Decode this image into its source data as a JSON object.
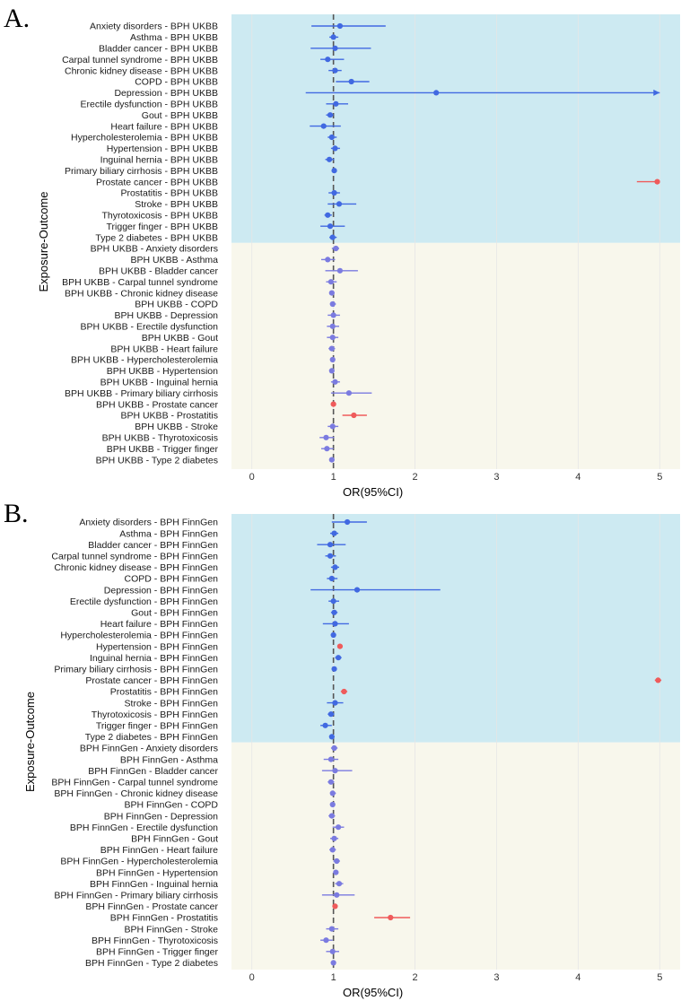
{
  "colors": {
    "band_top": "#cdeaf2",
    "band_bottom": "#f8f7ec",
    "nonsig": "#4169e1",
    "nonsig_rev": "#7b7be0",
    "sig": "#ef5b5b",
    "refline": "#555555",
    "grid": "#e6e6e6"
  },
  "chart_data": [
    {
      "panel": "A.",
      "type": "forest",
      "xlabel": "OR(95%CI)",
      "ylabel": "Exposure-Outcome",
      "xlim": [
        -0.25,
        5.25
      ],
      "xticks": [
        "0",
        "1",
        "2",
        "3",
        "4",
        "5"
      ],
      "reference": 1,
      "group_split": 20,
      "rows": [
        {
          "label": "Anxiety disorders - BPH UKBB",
          "or": 1.08,
          "lo": 0.73,
          "hi": 1.64,
          "sig": false
        },
        {
          "label": "Asthma - BPH UKBB",
          "or": 1.0,
          "lo": 0.95,
          "hi": 1.06,
          "sig": false
        },
        {
          "label": "Bladder cancer - BPH UKBB",
          "or": 1.02,
          "lo": 0.72,
          "hi": 1.46,
          "sig": false
        },
        {
          "label": "Carpal tunnel syndrome - BPH UKBB",
          "or": 0.93,
          "lo": 0.84,
          "hi": 1.13,
          "sig": false
        },
        {
          "label": "Chronic kidney disease - BPH UKBB",
          "or": 1.02,
          "lo": 0.94,
          "hi": 1.1,
          "sig": false
        },
        {
          "label": "COPD - BPH UKBB",
          "or": 1.22,
          "lo": 1.03,
          "hi": 1.44,
          "sig": false
        },
        {
          "label": "Depression - BPH UKBB",
          "or": 2.26,
          "lo": 0.66,
          "hi": 5.0,
          "sig": false,
          "arrow": true
        },
        {
          "label": "Erectile dysfunction - BPH UKBB",
          "or": 1.03,
          "lo": 0.91,
          "hi": 1.18,
          "sig": false
        },
        {
          "label": "Gout - BPH UKBB",
          "or": 0.96,
          "lo": 0.91,
          "hi": 1.0,
          "sig": false
        },
        {
          "label": "Heart failure - BPH UKBB",
          "or": 0.88,
          "lo": 0.71,
          "hi": 1.09,
          "sig": false
        },
        {
          "label": "Hypercholesterolemia - BPH UKBB",
          "or": 0.98,
          "lo": 0.93,
          "hi": 1.04,
          "sig": false
        },
        {
          "label": "Hypertension - BPH UKBB",
          "or": 1.02,
          "lo": 0.97,
          "hi": 1.08,
          "sig": false
        },
        {
          "label": "Inguinal hernia - BPH UKBB",
          "or": 0.95,
          "lo": 0.9,
          "hi": 1.01,
          "sig": false
        },
        {
          "label": "Primary biliary cirrhosis - BPH UKBB",
          "or": 1.01,
          "lo": 0.99,
          "hi": 1.03,
          "sig": false
        },
        {
          "label": "Prostate cancer - BPH UKBB",
          "or": 4.97,
          "lo": 4.72,
          "hi": 5.0,
          "sig": true
        },
        {
          "label": "Prostatitis - BPH UKBB",
          "or": 1.01,
          "lo": 0.94,
          "hi": 1.08,
          "sig": false
        },
        {
          "label": "Stroke - BPH UKBB",
          "or": 1.07,
          "lo": 0.93,
          "hi": 1.28,
          "sig": false
        },
        {
          "label": "Thyrotoxicosis - BPH UKBB",
          "or": 0.93,
          "lo": 0.89,
          "hi": 0.98,
          "sig": false
        },
        {
          "label": "Trigger finger - BPH UKBB",
          "or": 0.96,
          "lo": 0.84,
          "hi": 1.14,
          "sig": false
        },
        {
          "label": "Type 2 diabetes - BPH UKBB",
          "or": 0.99,
          "lo": 0.95,
          "hi": 1.04,
          "sig": false
        },
        {
          "label": "BPH UKBB - Anxiety disorders",
          "or": 1.03,
          "lo": 0.98,
          "hi": 1.07,
          "sig": false
        },
        {
          "label": "BPH UKBB - Asthma",
          "or": 0.93,
          "lo": 0.85,
          "hi": 1.02,
          "sig": false
        },
        {
          "label": "BPH UKBB - Bladder cancer",
          "or": 1.08,
          "lo": 0.9,
          "hi": 1.3,
          "sig": false
        },
        {
          "label": "BPH UKBB - Carpal tunnel syndrome",
          "or": 0.97,
          "lo": 0.91,
          "hi": 1.04,
          "sig": false
        },
        {
          "label": "BPH UKBB - Chronic kidney disease",
          "or": 0.98,
          "lo": 0.95,
          "hi": 1.01,
          "sig": false
        },
        {
          "label": "BPH UKBB - COPD",
          "or": 0.99,
          "lo": 0.96,
          "hi": 1.03,
          "sig": false
        },
        {
          "label": "BPH UKBB - Depression",
          "or": 1.0,
          "lo": 0.93,
          "hi": 1.08,
          "sig": false
        },
        {
          "label": "BPH UKBB - Erectile dysfunction",
          "or": 0.99,
          "lo": 0.92,
          "hi": 1.07,
          "sig": false
        },
        {
          "label": "BPH UKBB - Gout",
          "or": 0.99,
          "lo": 0.92,
          "hi": 1.06,
          "sig": false
        },
        {
          "label": "BPH UKBB - Heart failure",
          "or": 0.98,
          "lo": 0.94,
          "hi": 1.02,
          "sig": false
        },
        {
          "label": "BPH UKBB - Hypercholesterolemia",
          "or": 0.99,
          "lo": 0.96,
          "hi": 1.02,
          "sig": false
        },
        {
          "label": "BPH UKBB - Hypertension",
          "or": 0.98,
          "lo": 0.95,
          "hi": 1.01,
          "sig": false
        },
        {
          "label": "BPH UKBB - Inguinal hernia",
          "or": 1.02,
          "lo": 0.97,
          "hi": 1.08,
          "sig": false
        },
        {
          "label": "BPH UKBB - Primary biliary cirrhosis",
          "or": 1.19,
          "lo": 0.97,
          "hi": 1.47,
          "sig": false
        },
        {
          "label": "BPH UKBB - Prostate cancer",
          "or": 1.0,
          "lo": 0.99,
          "hi": 1.01,
          "sig": true
        },
        {
          "label": "BPH UKBB - Prostatitis",
          "or": 1.25,
          "lo": 1.11,
          "hi": 1.41,
          "sig": true
        },
        {
          "label": "BPH UKBB - Stroke",
          "or": 0.99,
          "lo": 0.93,
          "hi": 1.06,
          "sig": false
        },
        {
          "label": "BPH UKBB - Thyrotoxicosis",
          "or": 0.91,
          "lo": 0.83,
          "hi": 1.01,
          "sig": false
        },
        {
          "label": "BPH UKBB - Trigger finger",
          "or": 0.92,
          "lo": 0.85,
          "hi": 1.0,
          "sig": false
        },
        {
          "label": "BPH UKBB - Type 2 diabetes",
          "or": 0.98,
          "lo": 0.95,
          "hi": 1.01,
          "sig": false
        }
      ]
    },
    {
      "panel": "B.",
      "type": "forest",
      "xlabel": "OR(95%CI)",
      "ylabel": "Exposure-Outcome",
      "xlim": [
        -0.25,
        5.25
      ],
      "xticks": [
        "0",
        "1",
        "2",
        "3",
        "4",
        "5"
      ],
      "reference": 1,
      "group_split": 20,
      "rows": [
        {
          "label": "Anxiety disorders - BPH FinnGen",
          "or": 1.17,
          "lo": 0.98,
          "hi": 1.41,
          "sig": false
        },
        {
          "label": "Asthma - BPH FinnGen",
          "or": 1.01,
          "lo": 0.96,
          "hi": 1.06,
          "sig": false
        },
        {
          "label": "Bladder cancer - BPH FinnGen",
          "or": 0.96,
          "lo": 0.8,
          "hi": 1.15,
          "sig": false
        },
        {
          "label": "Carpal tunnel syndrome - BPH FinnGen",
          "or": 0.96,
          "lo": 0.9,
          "hi": 1.03,
          "sig": false
        },
        {
          "label": "Chronic kidney disease - BPH FinnGen",
          "or": 1.02,
          "lo": 0.97,
          "hi": 1.07,
          "sig": false
        },
        {
          "label": "COPD - BPH FinnGen",
          "or": 0.98,
          "lo": 0.92,
          "hi": 1.05,
          "sig": false
        },
        {
          "label": "Depression - BPH FinnGen",
          "or": 1.29,
          "lo": 0.72,
          "hi": 2.31,
          "sig": false
        },
        {
          "label": "Erectile dysfunction - BPH FinnGen",
          "or": 1.0,
          "lo": 0.94,
          "hi": 1.07,
          "sig": false
        },
        {
          "label": "Gout - BPH FinnGen",
          "or": 1.01,
          "lo": 0.97,
          "hi": 1.05,
          "sig": false
        },
        {
          "label": "Heart failure - BPH FinnGen",
          "or": 1.02,
          "lo": 0.87,
          "hi": 1.19,
          "sig": false
        },
        {
          "label": "Hypercholesterolemia - BPH FinnGen",
          "or": 1.0,
          "lo": 0.97,
          "hi": 1.03,
          "sig": false
        },
        {
          "label": "Hypertension - BPH FinnGen",
          "or": 1.08,
          "lo": 1.05,
          "hi": 1.11,
          "sig": true
        },
        {
          "label": "Inguinal hernia - BPH FinnGen",
          "or": 1.06,
          "lo": 1.02,
          "hi": 1.1,
          "sig": false
        },
        {
          "label": "Primary biliary cirrhosis - BPH FinnGen",
          "or": 1.01,
          "lo": 0.99,
          "hi": 1.03,
          "sig": false
        },
        {
          "label": "Prostate cancer - BPH FinnGen",
          "or": 4.98,
          "lo": 4.94,
          "hi": 5.02,
          "sig": true
        },
        {
          "label": "Prostatitis - BPH FinnGen",
          "or": 1.13,
          "lo": 1.09,
          "hi": 1.17,
          "sig": true
        },
        {
          "label": "Stroke - BPH FinnGen",
          "or": 1.02,
          "lo": 0.92,
          "hi": 1.12,
          "sig": false
        },
        {
          "label": "Thyrotoxicosis - BPH FinnGen",
          "or": 0.97,
          "lo": 0.93,
          "hi": 1.01,
          "sig": false
        },
        {
          "label": "Trigger finger - BPH FinnGen",
          "or": 0.9,
          "lo": 0.84,
          "hi": 0.98,
          "sig": false
        },
        {
          "label": "Type 2 diabetes - BPH FinnGen",
          "or": 0.98,
          "lo": 0.95,
          "hi": 1.01,
          "sig": false
        },
        {
          "label": "BPH FinnGen - Anxiety disorders",
          "or": 1.01,
          "lo": 0.97,
          "hi": 1.05,
          "sig": false
        },
        {
          "label": "BPH FinnGen - Asthma",
          "or": 0.97,
          "lo": 0.88,
          "hi": 1.06,
          "sig": false
        },
        {
          "label": "BPH FinnGen - Bladder cancer",
          "or": 1.02,
          "lo": 0.86,
          "hi": 1.23,
          "sig": false
        },
        {
          "label": "BPH FinnGen - Carpal tunnel syndrome",
          "or": 0.97,
          "lo": 0.93,
          "hi": 1.01,
          "sig": false
        },
        {
          "label": "BPH FinnGen - Chronic kidney disease",
          "or": 0.99,
          "lo": 0.96,
          "hi": 1.03,
          "sig": false
        },
        {
          "label": "BPH FinnGen - COPD",
          "or": 0.99,
          "lo": 0.96,
          "hi": 1.02,
          "sig": false
        },
        {
          "label": "BPH FinnGen - Depression",
          "or": 0.98,
          "lo": 0.94,
          "hi": 1.02,
          "sig": false
        },
        {
          "label": "BPH FinnGen - Erectile dysfunction",
          "or": 1.06,
          "lo": 0.99,
          "hi": 1.13,
          "sig": false
        },
        {
          "label": "BPH FinnGen - Gout",
          "or": 1.01,
          "lo": 0.96,
          "hi": 1.06,
          "sig": false
        },
        {
          "label": "BPH FinnGen - Heart failure",
          "or": 0.99,
          "lo": 0.95,
          "hi": 1.03,
          "sig": false
        },
        {
          "label": "BPH FinnGen - Hypercholesterolemia",
          "or": 1.04,
          "lo": 1.0,
          "hi": 1.08,
          "sig": false
        },
        {
          "label": "BPH FinnGen - Hypertension",
          "or": 1.03,
          "lo": 1.0,
          "hi": 1.06,
          "sig": false
        },
        {
          "label": "BPH FinnGen - Inguinal hernia",
          "or": 1.07,
          "lo": 1.02,
          "hi": 1.12,
          "sig": false
        },
        {
          "label": "BPH FinnGen - Primary biliary cirrhosis",
          "or": 1.04,
          "lo": 0.86,
          "hi": 1.26,
          "sig": false
        },
        {
          "label": "BPH FinnGen - Prostate cancer",
          "or": 1.02,
          "lo": 1.0,
          "hi": 1.04,
          "sig": true
        },
        {
          "label": "BPH FinnGen - Prostatitis",
          "or": 1.7,
          "lo": 1.5,
          "hi": 1.94,
          "sig": true
        },
        {
          "label": "BPH FinnGen - Stroke",
          "or": 0.98,
          "lo": 0.91,
          "hi": 1.06,
          "sig": false
        },
        {
          "label": "BPH FinnGen - Thyrotoxicosis",
          "or": 0.91,
          "lo": 0.84,
          "hi": 0.99,
          "sig": false
        },
        {
          "label": "BPH FinnGen - Trigger finger",
          "or": 0.99,
          "lo": 0.91,
          "hi": 1.07,
          "sig": false
        },
        {
          "label": "BPH FinnGen - Type 2 diabetes",
          "or": 1.0,
          "lo": 0.97,
          "hi": 1.03,
          "sig": false
        }
      ]
    }
  ]
}
